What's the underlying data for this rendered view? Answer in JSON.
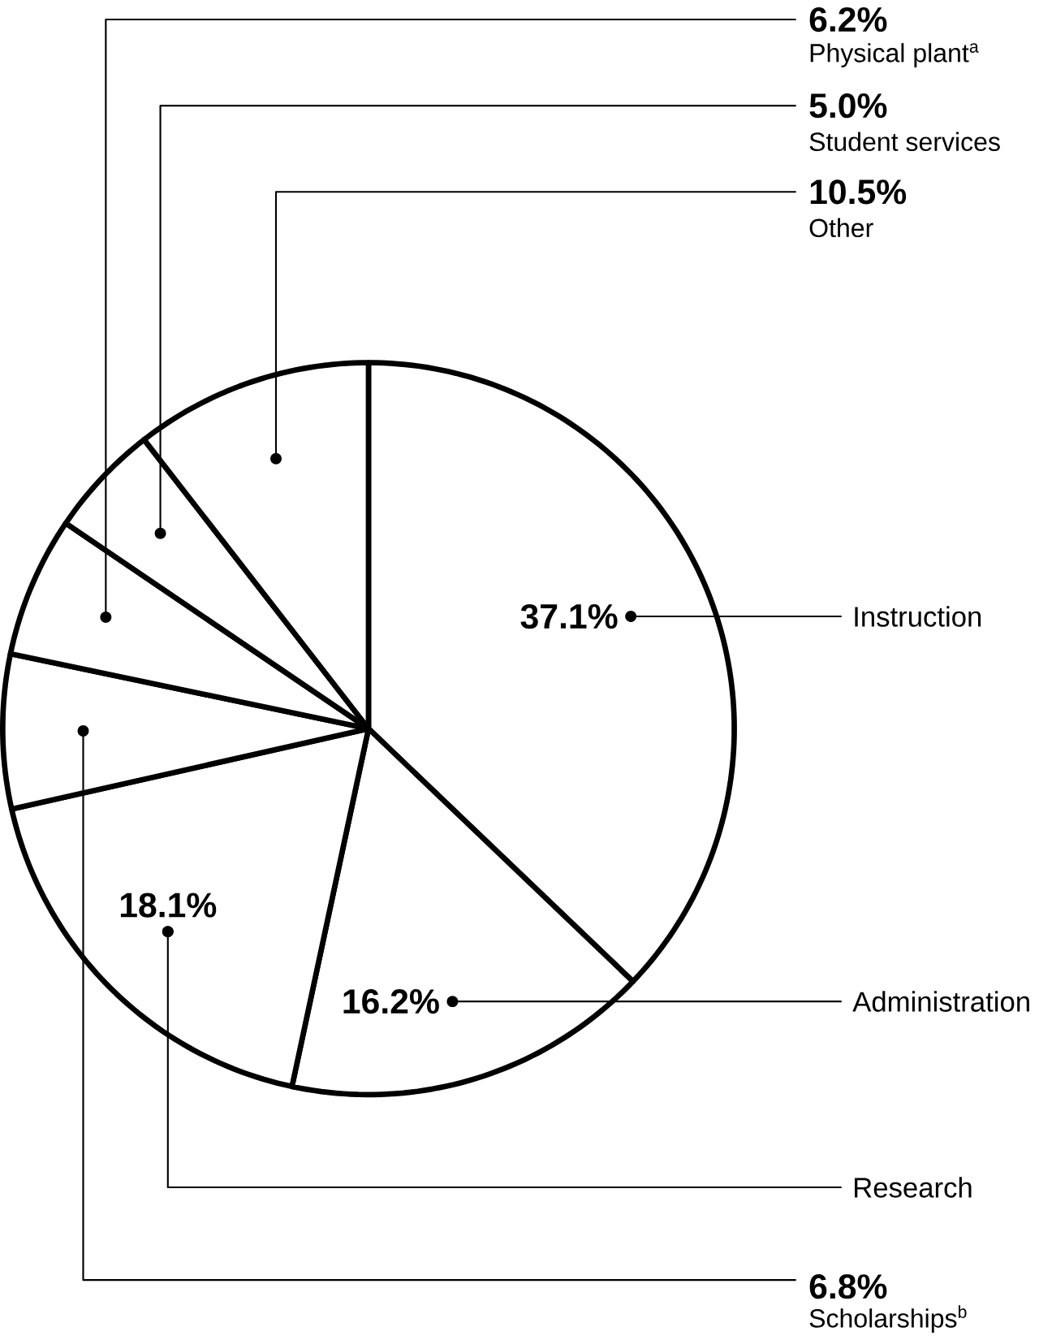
{
  "chart_data": {
    "type": "pie",
    "categories": [
      "Instruction",
      "Administration",
      "Research",
      "Scholarships$^{b}$",
      "Physical plant$^{a}$",
      "Student services",
      "Other"
    ],
    "values": [
      37.1,
      16.2,
      18.1,
      6.8,
      6.2,
      5.0,
      10.5
    ],
    "colors": [
      "#ffffff",
      "#ffffff",
      "#ffffff",
      "#ffffff",
      "#ffffff",
      "#ffffff",
      "#ffffff"
    ],
    "value_labels": [
      "37.1%",
      "16.2%",
      "18.1%",
      "6.8%",
      "6.2%",
      "5.0%",
      "10.5%"
    ]
  }
}
